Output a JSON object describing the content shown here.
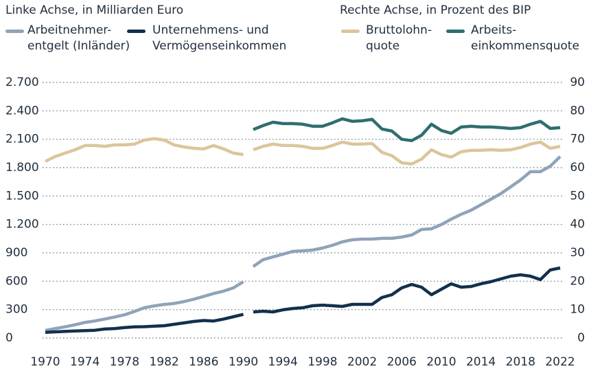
{
  "chart_data": {
    "type": "line",
    "ylabel": "Linke Achse, in Milliarden Euro",
    "y2label": "Rechte Achse, in Prozent des BIP",
    "x": [
      1970,
      1971,
      1972,
      1973,
      1974,
      1975,
      1976,
      1977,
      1978,
      1979,
      1980,
      1981,
      1982,
      1983,
      1984,
      1985,
      1986,
      1987,
      1988,
      1989,
      1990,
      1991,
      1992,
      1993,
      1994,
      1995,
      1996,
      1997,
      1998,
      1999,
      2000,
      2001,
      2002,
      2003,
      2004,
      2005,
      2006,
      2007,
      2008,
      2009,
      2010,
      2011,
      2012,
      2013,
      2014,
      2015,
      2016,
      2017,
      2018,
      2019,
      2020,
      2021,
      2022
    ],
    "break_after": 1990,
    "xlim": [
      1970,
      2022
    ],
    "xticks": [
      1970,
      1974,
      1978,
      1982,
      1986,
      1990,
      1994,
      1998,
      2002,
      2006,
      2010,
      2014,
      2018,
      2022
    ],
    "ylim": [
      0,
      2700
    ],
    "yticks": [
      0,
      300,
      600,
      900,
      {
        "value": 1200,
        "label": "1.200"
      },
      {
        "value": 1500,
        "label": "1.500"
      },
      {
        "value": 1800,
        "label": "1.800"
      },
      {
        "value": 2100,
        "label": "2.100"
      },
      {
        "value": 2400,
        "label": "2.400"
      },
      {
        "value": 2700,
        "label": "2.700"
      }
    ],
    "y2lim": [
      0,
      90
    ],
    "y2ticks": [
      0,
      10,
      20,
      30,
      40,
      50,
      60,
      70,
      80,
      90
    ],
    "grid": true,
    "series": [
      {
        "name": "Arbeitnehmer-\nentgelt (Inländer)",
        "color": "#8fa3b9",
        "values": [
          80,
          100,
          118,
          140,
          165,
          180,
          200,
          222,
          245,
          280,
          320,
          340,
          355,
          365,
          385,
          410,
          440,
          470,
          495,
          530,
          595,
          755,
          828,
          857,
          886,
          915,
          922,
          929,
          951,
          980,
          1016,
          1038,
          1045,
          1045,
          1053,
          1053,
          1067,
          1089,
          1147,
          1154,
          1198,
          1256,
          1307,
          1350,
          1408,
          1466,
          1525,
          1597,
          1670,
          1757,
          1757,
          1815,
          1917
        ]
      },
      {
        "name": "Unternehmens- und\nVermögenseinkommen",
        "color": "#12304d",
        "values": [
          60,
          65,
          70,
          75,
          78,
          82,
          95,
          100,
          110,
          118,
          120,
          125,
          130,
          145,
          160,
          175,
          185,
          180,
          200,
          225,
          250,
          276,
          283,
          276,
          298,
          312,
          320,
          341,
          348,
          341,
          334,
          356,
          356,
          356,
          428,
          457,
          530,
          566,
          537,
          457,
          515,
          573,
          537,
          544,
          573,
          595,
          624,
          653,
          668,
          653,
          617,
          719,
          740
        ]
      },
      {
        "name": "Bruttolohn-\nquote",
        "color": "#dcc59b",
        "axis": "y2",
        "values": [
          62.2,
          63.9,
          65.1,
          66.3,
          67.8,
          67.8,
          67.5,
          68.0,
          68.0,
          68.3,
          69.7,
          70.2,
          69.7,
          68.0,
          67.3,
          66.8,
          66.6,
          67.8,
          66.6,
          65.1,
          64.6,
          66.3,
          67.5,
          68.3,
          67.8,
          67.8,
          67.5,
          66.8,
          66.8,
          67.8,
          69.0,
          68.3,
          68.3,
          68.5,
          65.4,
          64.2,
          61.7,
          61.3,
          63.0,
          66.3,
          64.6,
          63.7,
          65.6,
          66.1,
          66.1,
          66.3,
          66.1,
          66.3,
          67.1,
          68.3,
          69.0,
          66.8,
          67.5
        ]
      },
      {
        "name": "Arbeits-\neinkommensquote",
        "color": "#2f6e6e",
        "axis": "y2",
        "values": [
          null,
          null,
          null,
          null,
          null,
          null,
          null,
          null,
          null,
          null,
          null,
          null,
          null,
          null,
          null,
          null,
          null,
          null,
          null,
          null,
          null,
          73.4,
          74.8,
          76.0,
          75.5,
          75.5,
          75.3,
          74.6,
          74.6,
          75.8,
          77.2,
          76.3,
          76.5,
          77.0,
          73.6,
          72.9,
          70.0,
          69.5,
          71.4,
          75.3,
          73.1,
          72.1,
          74.3,
          74.6,
          74.3,
          74.3,
          74.1,
          73.8,
          74.1,
          75.3,
          76.3,
          73.8,
          74.1
        ]
      }
    ]
  }
}
